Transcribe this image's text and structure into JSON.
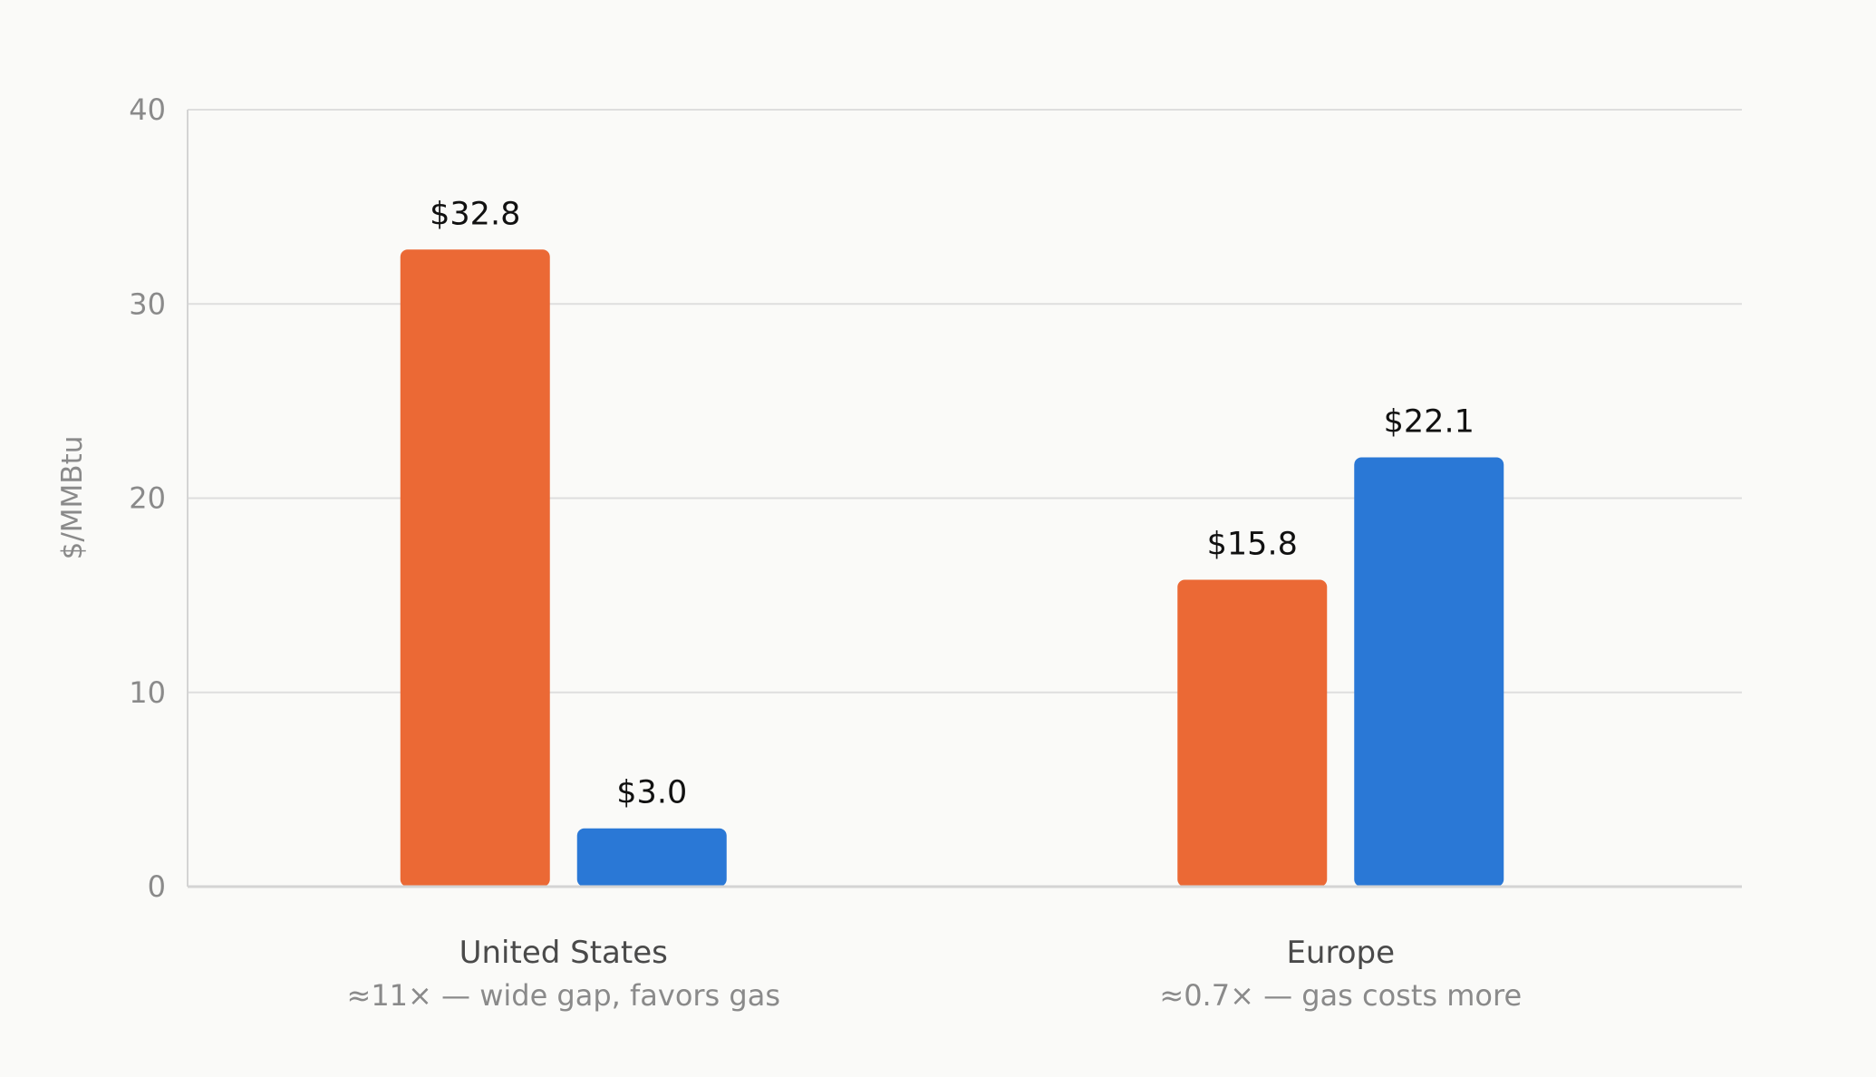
{
  "chart_data": {
    "type": "bar",
    "ylabel": "$/MMBtu",
    "ylim": [
      0,
      40
    ],
    "yticks": [
      0,
      10,
      20,
      30,
      40
    ],
    "grid": true,
    "categories": [
      "United States",
      "Europe"
    ],
    "category_notes": [
      "≈11× — wide gap, favors gas",
      "≈0.7× — gas costs more"
    ],
    "series": [
      {
        "color": "#eb6935",
        "values": [
          32.8,
          15.8
        ],
        "value_labels": [
          "$32.8",
          "$15.8"
        ]
      },
      {
        "color": "#2a78d6",
        "values": [
          3.0,
          22.1
        ],
        "value_labels": [
          "$3.0",
          "$22.1"
        ]
      }
    ]
  }
}
